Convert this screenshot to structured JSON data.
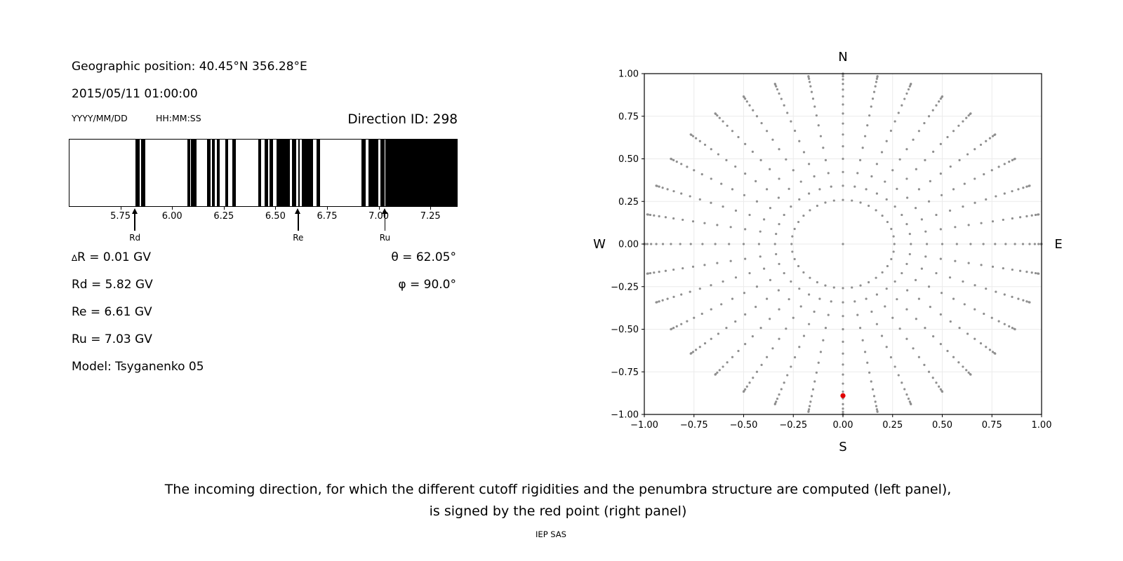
{
  "title_block": {
    "geographic_position": "Geographic position: 40.45°N 356.28°E",
    "datetime": "2015/05/11 01:00:00",
    "date_format_label": "YYYY/MM/DD",
    "time_format_label": "HH:MM:SS",
    "direction_id_label": "Direction ID: 298"
  },
  "left_info": {
    "rows": [
      {
        "prefix": "∆",
        "text": "R = 0.01 GV"
      },
      {
        "prefix": "",
        "text": "Rd = 5.82 GV"
      },
      {
        "prefix": "",
        "text": "Re = 6.61 GV"
      },
      {
        "prefix": "",
        "text": "Ru = 7.03 GV"
      },
      {
        "prefix": "",
        "text": "Model: Tsyganenko 05"
      }
    ],
    "theta": "θ = 62.05°",
    "phi": "φ = 90.0°"
  },
  "chart_data": [
    {
      "type": "bar",
      "name": "penumbra-barcode",
      "description": "Penumbra structure: black bands = forbidden rigidity intervals (GV)",
      "xlim": [
        5.5,
        7.375
      ],
      "xticks": [
        5.75,
        6.0,
        6.25,
        6.5,
        6.75,
        7.0,
        7.25
      ],
      "bar_color": "#000000",
      "forbidden_bands_gv": [
        [
          5.82,
          5.838
        ],
        [
          5.845,
          5.868
        ],
        [
          6.07,
          6.084
        ],
        [
          6.089,
          6.115
        ],
        [
          6.166,
          6.182
        ],
        [
          6.19,
          6.203
        ],
        [
          6.212,
          6.226
        ],
        [
          6.253,
          6.268
        ],
        [
          6.288,
          6.304
        ],
        [
          6.414,
          6.429
        ],
        [
          6.444,
          6.461
        ],
        [
          6.469,
          6.486
        ],
        [
          6.501,
          6.566
        ],
        [
          6.576,
          6.598
        ],
        [
          6.606,
          6.615
        ],
        [
          6.624,
          6.679
        ],
        [
          6.696,
          6.712
        ],
        [
          6.913,
          6.933
        ],
        [
          6.948,
          6.995
        ],
        [
          7.006,
          7.024
        ],
        [
          7.03,
          7.375
        ]
      ],
      "arrows": [
        {
          "label": "Rd",
          "value": 5.82
        },
        {
          "label": "Re",
          "value": 6.61
        },
        {
          "label": "Ru",
          "value": 7.03
        }
      ]
    },
    {
      "type": "scatter",
      "name": "incoming-direction-grid",
      "xlim": [
        -1,
        1
      ],
      "ylim": [
        -1,
        1
      ],
      "xticks": [
        -1.0,
        -0.75,
        -0.5,
        -0.25,
        0.0,
        0.25,
        0.5,
        0.75,
        1.0
      ],
      "yticks": [
        -1.0,
        -0.75,
        -0.5,
        -0.25,
        0.0,
        0.25,
        0.5,
        0.75,
        1.0
      ],
      "grid_on": true,
      "grid_color": "#ebebeb",
      "compass": {
        "top": "N",
        "bottom": "S",
        "left": "W",
        "right": "E"
      },
      "direction_grid": {
        "azimuth_start_deg": 0,
        "azimuth_step_deg": 10,
        "azimuth_count": 36,
        "zenith_start_deg": 15,
        "zenith_step_deg": 5,
        "zenith_end_deg": 90,
        "radius_mapping": "sin(zenith)",
        "center_point": true
      },
      "dot_color": "#8f8f8f",
      "selected_point": {
        "x": 0.0,
        "y": -0.89,
        "color": "#e00000"
      }
    }
  ],
  "caption": {
    "line1": "The incoming direction, for which the different cutoff rigidities and the penumbra structure are computed (left panel),",
    "line2": "is signed by the red point (right panel)",
    "credit": "IEP SAS"
  }
}
